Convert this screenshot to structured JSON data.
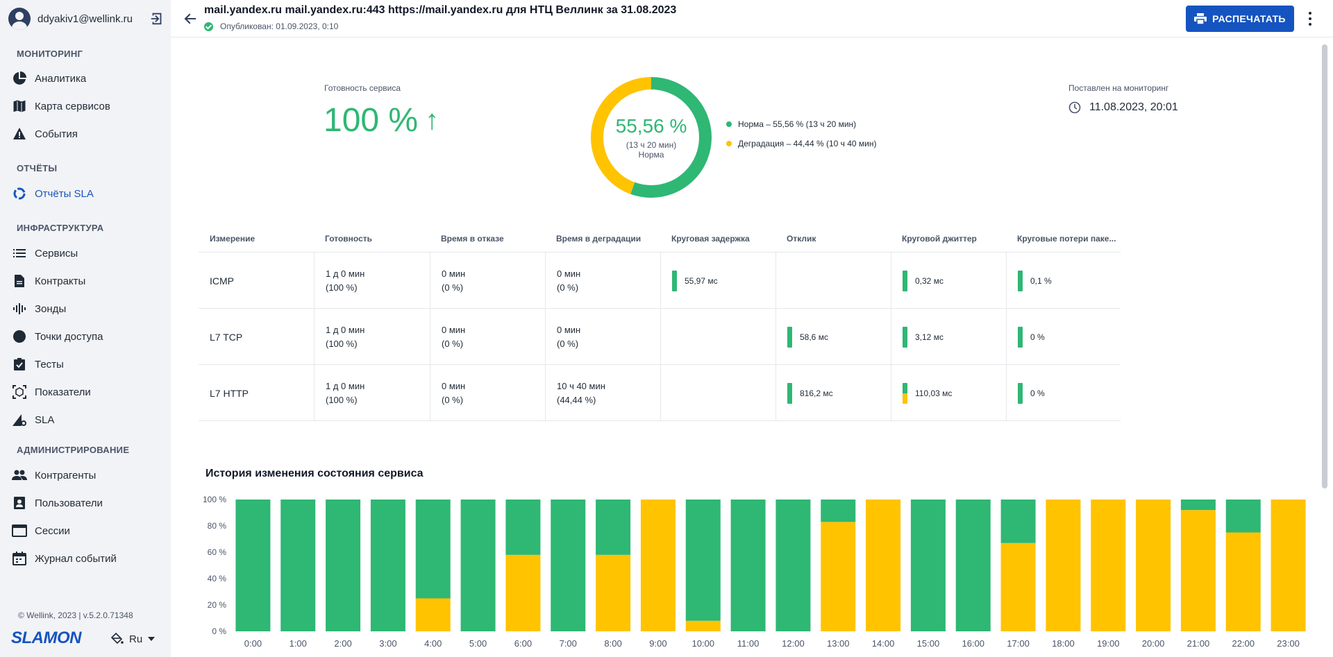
{
  "sidebar": {
    "user_email": "ddyakiv1@wellink.ru",
    "sections": {
      "monitoring": "МОНИТОРИНГ",
      "reports": "ОТЧЁТЫ",
      "infrastructure": "ИНФРАСТРУКТУРА",
      "administration": "АДМИНИСТРИРОВАНИЕ"
    },
    "items": {
      "analytics": "Аналитика",
      "service_map": "Карта сервисов",
      "events": "События",
      "sla_reports": "Отчёты SLA",
      "services": "Сервисы",
      "contracts": "Контракты",
      "probes": "Зонды",
      "access_points": "Точки доступа",
      "tests": "Тесты",
      "indicators": "Показатели",
      "sla": "SLA",
      "counterparties": "Контрагенты",
      "users": "Пользователи",
      "sessions": "Сессии",
      "event_log": "Журнал событий"
    },
    "copyright": "© Wellink, 2023 | v.5.2.0.71348",
    "logo": "SLAMON",
    "language": "Ru"
  },
  "header": {
    "title": "mail.yandex.ru mail.yandex.ru:443 https://mail.yandex.ru для НТЦ Веллинк за 31.08.2023",
    "published": "Опубликован: 01.09.2023, 0:10",
    "print_label": "РАСПЕЧАТАТЬ"
  },
  "summary": {
    "availability_label": "Готовность сервиса",
    "availability_value": "100 %",
    "availability_arrow": "↑",
    "donut_pct": "55,56 %",
    "donut_sub": "(13 ч 20 мин)",
    "donut_state": "Норма",
    "norm_fraction": 0.5556,
    "legend_norm": "Норма – 55,56 % (13 ч 20 мин)",
    "legend_degradation": "Деградация – 44,44 % (10 ч 40 мин)",
    "monitor_label": "Поставлен на мониторинг",
    "monitor_value": "11.08.2023, 20:01"
  },
  "colors": {
    "norm": "#2fb774",
    "degradation": "#ffc300",
    "accent": "#1554c0"
  },
  "table": {
    "headers": [
      "Измерение",
      "Готовность",
      "Время в отказе",
      "Время в деградации",
      "Круговая задержка",
      "Отклик",
      "Круговой джиттер",
      "Круговые потери паке..."
    ],
    "rows": [
      {
        "name": "ICMP",
        "readiness": [
          "1 д 0 мин",
          "(100 %)"
        ],
        "failure": [
          "0 мин",
          "(0 %)"
        ],
        "degradation": [
          "0 мин",
          "(0 %)"
        ],
        "rtt": "55,97 мс",
        "response": "",
        "jitter": "0,32 мс",
        "loss": "0,1 %"
      },
      {
        "name": "L7 TCP",
        "readiness": [
          "1 д 0 мин",
          "(100 %)"
        ],
        "failure": [
          "0 мин",
          "(0 %)"
        ],
        "degradation": [
          "0 мин",
          "(0 %)"
        ],
        "rtt": "",
        "response": "58,6 мс",
        "jitter": "3,12 мс",
        "loss": "0 %"
      },
      {
        "name": "L7 HTTP",
        "readiness": [
          "1 д 0 мин",
          "(100 %)"
        ],
        "failure": [
          "0 мин",
          "(0 %)"
        ],
        "degradation": [
          "10 ч 40 мин",
          "(44,44 %)"
        ],
        "rtt": "",
        "response": "816,2 мс",
        "jitter": "110,03 мс",
        "loss": "0 %"
      }
    ]
  },
  "history_title": "История изменения состояния сервиса",
  "chart_data": {
    "type": "bar",
    "stacked": true,
    "categories": [
      "0:00",
      "1:00",
      "2:00",
      "3:00",
      "4:00",
      "5:00",
      "6:00",
      "7:00",
      "8:00",
      "9:00",
      "10:00",
      "11:00",
      "12:00",
      "13:00",
      "14:00",
      "15:00",
      "16:00",
      "17:00",
      "18:00",
      "19:00",
      "20:00",
      "21:00",
      "22:00",
      "23:00"
    ],
    "series": [
      {
        "color": "#ffc300",
        "values": [
          0,
          0,
          0,
          0,
          25,
          0,
          58,
          0,
          58,
          100,
          8,
          0,
          0,
          83,
          100,
          0,
          0,
          67,
          100,
          100,
          100,
          92,
          75,
          100
        ]
      },
      {
        "color": "#2fb774",
        "values": [
          100,
          100,
          100,
          100,
          75,
          100,
          42,
          100,
          42,
          0,
          92,
          100,
          100,
          17,
          0,
          100,
          100,
          33,
          0,
          0,
          0,
          8,
          25,
          0
        ]
      }
    ],
    "y_ticks": [
      "0 %",
      "20 %",
      "40 %",
      "60 %",
      "80 %",
      "100 %"
    ],
    "ylim": [
      0,
      100
    ],
    "grid": false
  }
}
